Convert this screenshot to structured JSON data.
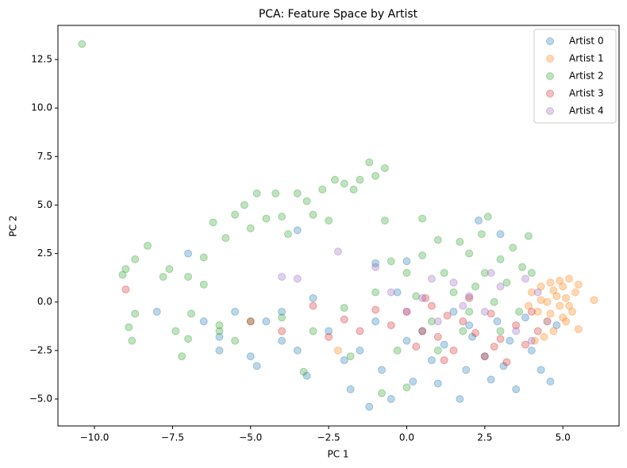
{
  "chart_data": {
    "type": "scatter",
    "title": "PCA: Feature Space by Artist",
    "x_label": "PC 1",
    "y_label": "PC 2",
    "xlim": [
      -11.17,
      6.8
    ],
    "ylim": [
      -6.39,
      14.26
    ],
    "xticks": [
      {
        "value": -10,
        "label": "−10.0"
      },
      {
        "value": -7.5,
        "label": "−7.5"
      },
      {
        "value": -5,
        "label": "−5.0"
      },
      {
        "value": -2.5,
        "label": "−2.5"
      },
      {
        "value": 0,
        "label": "0.0"
      },
      2.5,
      {
        "value": 5,
        "label": "5.0"
      }
    ],
    "yticks": [
      {
        "value": -5,
        "label": "−5.0"
      },
      {
        "value": -2.5,
        "label": "−2.5"
      },
      {
        "value": 0,
        "label": "0.0"
      },
      2.5,
      {
        "value": 5,
        "label": "5.0"
      },
      7.5,
      {
        "value": 10,
        "label": "10.0"
      },
      12.5
    ],
    "grid": false,
    "legend": "upper right",
    "series": [
      {
        "name": "Artist 0",
        "color": "#1f77b4",
        "x": [
          -7,
          -6.5,
          -6,
          -5.5,
          -5,
          -4.8,
          -4.5,
          -4,
          -3.5,
          -3.2,
          -3,
          -2.5,
          -2,
          -1.8,
          -1.5,
          -1.2,
          -1,
          -0.8,
          -0.5,
          -0.3,
          0,
          0.2,
          0.5,
          0.8,
          1,
          1.2,
          1.5,
          1.7,
          1.9,
          2.1,
          2.3,
          2.5,
          2.7,
          2.9,
          3.1,
          3.3,
          3.5,
          3.8,
          4,
          4.3,
          4.6,
          4.8,
          -3.5,
          -1,
          0,
          -6,
          -8,
          -4,
          2,
          3
        ],
        "values": [
          2.5,
          -1,
          -1.8,
          -0.5,
          -2.8,
          -3.3,
          -1,
          -2,
          -2.5,
          -3.8,
          0.2,
          -1.5,
          -3,
          -4.5,
          -2.5,
          -5.4,
          -1,
          -3.5,
          -5,
          0.5,
          -2,
          -4.1,
          -1.5,
          -3,
          -4.2,
          -2.2,
          -0.5,
          -5,
          -3.5,
          -1.8,
          4.2,
          -2.8,
          -4,
          -1,
          -3.3,
          -2,
          -4.5,
          -0.8,
          -2.5,
          -3.5,
          -4.1,
          -1.2,
          3.7,
          2,
          2.1,
          -2.5,
          -0.5,
          -0.5,
          -1.2,
          3.5
        ]
      },
      {
        "name": "Artist 1",
        "color": "#ff7f0e",
        "x": [
          4,
          4.2,
          4.3,
          4.5,
          4.5,
          4.6,
          4.7,
          4.8,
          4.9,
          5,
          5,
          5.1,
          5.2,
          5.3,
          5.4,
          5.5,
          5.5,
          6,
          4.1,
          4.4,
          3.9,
          4.7,
          5.2,
          -2.2,
          4.6,
          5.1,
          4.3,
          4.9
        ],
        "values": [
          0.5,
          -0.5,
          0.8,
          -1,
          0,
          1,
          -1.5,
          0.3,
          -0.2,
          0.8,
          -0.8,
          0.2,
          1.2,
          -0.5,
          0.5,
          -1.4,
          0.9,
          0.1,
          -2,
          -1.8,
          -0.2,
          0.6,
          -0.2,
          -2.5,
          -0.6,
          -1,
          0.1,
          1.1
        ]
      },
      {
        "name": "Artist 2",
        "color": "#2ca02c",
        "x": [
          -10.4,
          -9.1,
          -9,
          -8.9,
          -8.8,
          -8.7,
          -8.7,
          -8.3,
          -7.8,
          -7.6,
          -7.4,
          -7.2,
          -7,
          -6.9,
          -6.5,
          -6.5,
          -6.2,
          -6,
          -5.8,
          -5.5,
          -5.2,
          -5,
          -4.8,
          -4.5,
          -4.2,
          -4,
          -3.8,
          -3.5,
          -3.2,
          -3,
          -2.7,
          -2.5,
          -2.3,
          -2,
          -1.7,
          -1.5,
          -1.2,
          -1,
          -0.7,
          -0.7,
          -0.5,
          -0.3,
          0,
          0.3,
          0.5,
          0.5,
          0.8,
          1,
          1.2,
          1.5,
          1.7,
          1.8,
          2,
          2.2,
          2.4,
          2.5,
          2.6,
          2.8,
          3,
          3.2,
          3.4,
          3.6,
          3.7,
          3.9,
          4,
          -3.3,
          -1.8,
          -0.8,
          0,
          -5,
          -4,
          -3,
          -2,
          -1,
          -6,
          -7,
          -5.5,
          1,
          2,
          3
        ],
        "values": [
          13.3,
          1.4,
          1.7,
          -1.3,
          -2,
          2.2,
          -0.6,
          2.9,
          1.3,
          1.7,
          -1.5,
          -2.8,
          1.3,
          -0.6,
          0.9,
          2.3,
          4.1,
          -1.2,
          3.3,
          4.5,
          5,
          3.8,
          5.6,
          4.3,
          5.6,
          4.4,
          3.5,
          5.6,
          5.2,
          4.5,
          5.8,
          4.2,
          6.3,
          6.1,
          5.8,
          6.3,
          7.2,
          6.5,
          6.9,
          4.2,
          2.1,
          -2.5,
          1.5,
          0.3,
          2.4,
          4.3,
          -1,
          3.2,
          1.5,
          0.5,
          3.1,
          -1.5,
          2.5,
          0.8,
          3.5,
          1.5,
          4.4,
          0,
          2.2,
          1,
          2.8,
          -0.5,
          1.8,
          3.4,
          1.5,
          -3.6,
          -2.8,
          -4.7,
          -4.4,
          -1,
          -0.8,
          -1.5,
          -0.3,
          0.5,
          -1.5,
          -1.9,
          -2,
          -2.5,
          -0.5,
          -1.5
        ]
      },
      {
        "name": "Artist 3",
        "color": "#d62728",
        "x": [
          -9,
          -5,
          -4,
          -3,
          -2,
          -1.5,
          -1,
          -0.5,
          0,
          0.3,
          0.5,
          0.8,
          1,
          1.3,
          1.5,
          1.8,
          2,
          2.2,
          2.5,
          2.7,
          3,
          3.2,
          3.5,
          3.8,
          4,
          4.2,
          -2.5,
          1.2,
          2.8,
          0.6
        ],
        "values": [
          0.65,
          -1,
          -1.5,
          -0.2,
          -0.9,
          -1.5,
          -0.4,
          -1.2,
          -0.5,
          -2.3,
          -1.5,
          -0.2,
          -1.8,
          -0.7,
          -2.5,
          -1,
          0.2,
          -1.6,
          -2.8,
          -0.6,
          -1.9,
          -3.1,
          -1.2,
          -2.2,
          -0.5,
          -1.5,
          -1.8,
          -3,
          -2.3,
          0.2
        ]
      },
      {
        "name": "Artist 4",
        "color": "#9467bd",
        "x": [
          -4,
          -3.5,
          -2.2,
          -1,
          -0.5,
          0,
          0.5,
          1,
          1.5,
          2,
          2.5,
          3,
          3.5,
          3.8,
          4,
          4.2,
          4.5,
          1.8,
          2.7,
          0.8
        ],
        "values": [
          1.3,
          1.2,
          2.6,
          1.8,
          0.5,
          -0.5,
          0.2,
          -1,
          1,
          0.3,
          -0.5,
          0.8,
          -1.5,
          1.2,
          -2,
          0.5,
          -1,
          -0.2,
          1.5,
          1.2
        ]
      }
    ]
  }
}
